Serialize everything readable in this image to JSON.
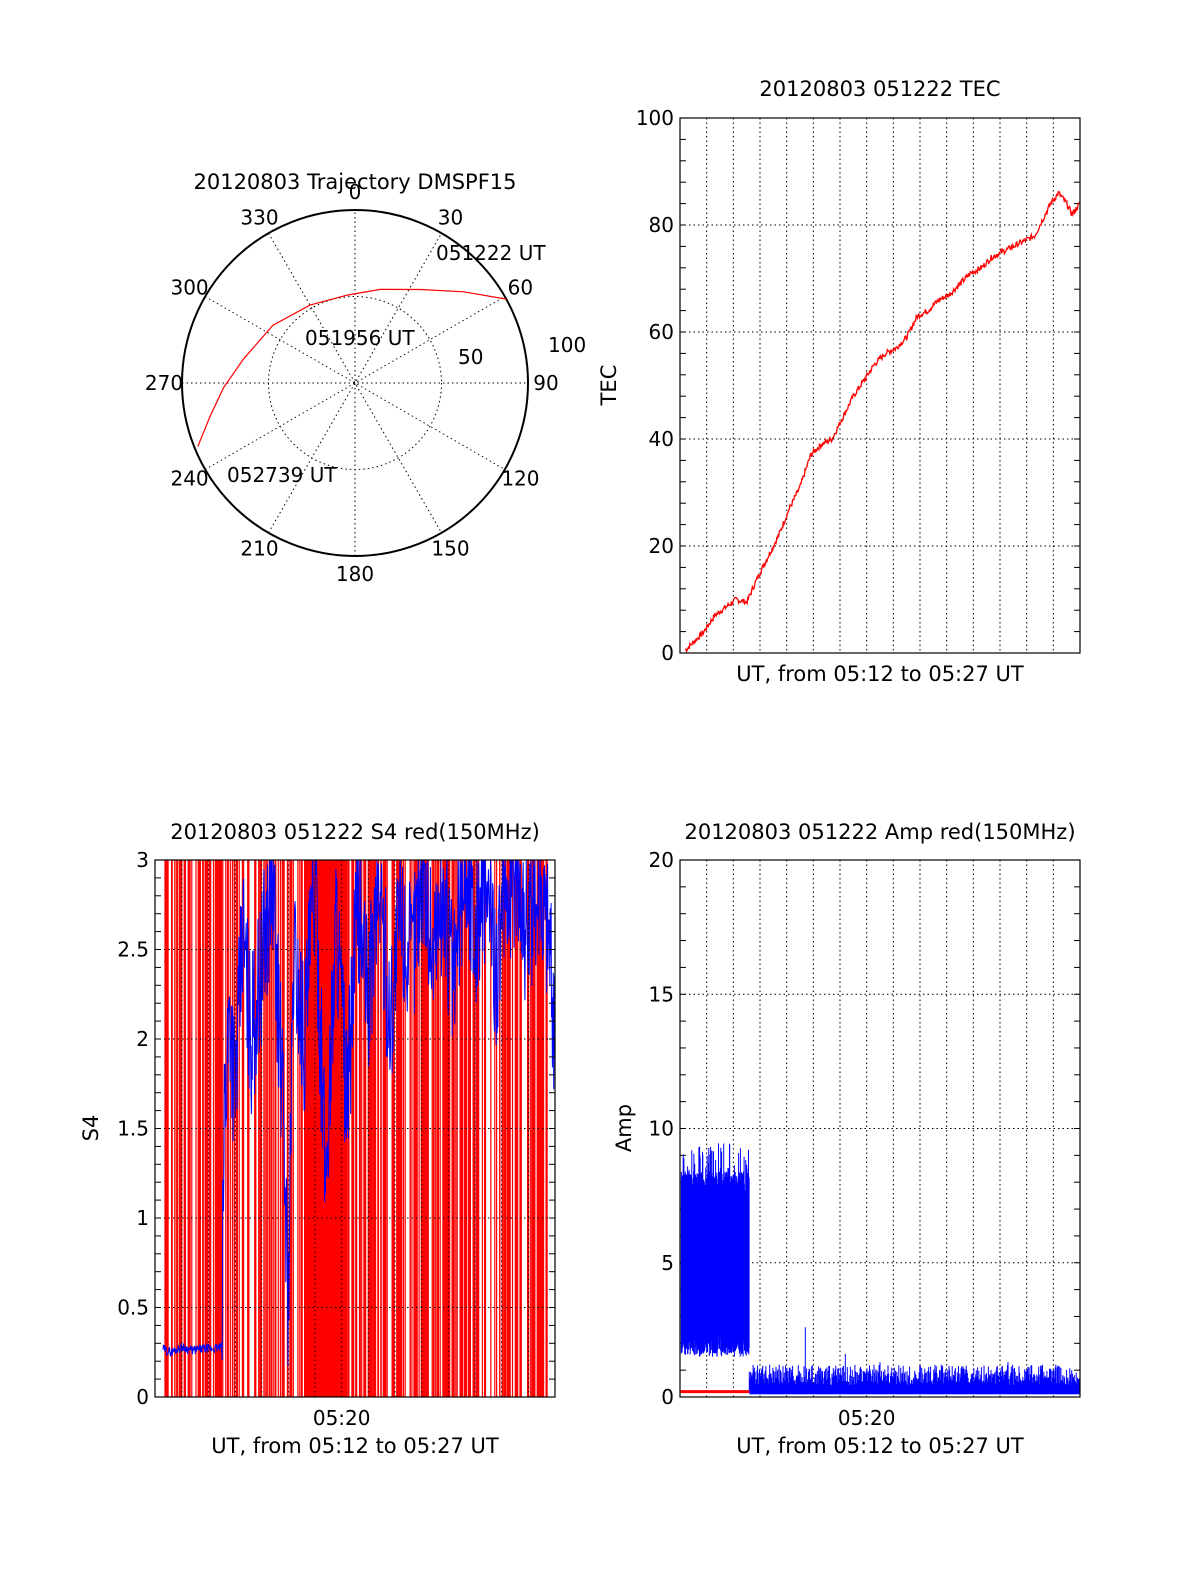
{
  "colors": {
    "red_series": "#ff0000",
    "blue_series": "#0000ff",
    "axes": "#000000"
  },
  "chart_data": [
    {
      "type": "polar",
      "title": "20120803 Trajectory DMSPF15",
      "angle_ticks": [
        "0",
        "30",
        "60",
        "90",
        "120",
        "150",
        "180",
        "210",
        "240",
        "270",
        "300",
        "330"
      ],
      "radial_ticks": [
        "50",
        "100"
      ],
      "zenith_range": [
        0,
        100
      ],
      "track": {
        "color": "#ff0000",
        "points": [
          {
            "azimuth": 61,
            "zenith": 100
          },
          {
            "azimuth": 50,
            "zenith": 82
          },
          {
            "azimuth": 35,
            "zenith": 66
          },
          {
            "azimuth": 15,
            "zenith": 56
          },
          {
            "azimuth": 355,
            "zenith": 51
          },
          {
            "azimuth": 330,
            "zenith": 52
          },
          {
            "azimuth": 305,
            "zenith": 58
          },
          {
            "azimuth": 282,
            "zenith": 66
          },
          {
            "azimuth": 268,
            "zenith": 76
          },
          {
            "azimuth": 257,
            "zenith": 86
          },
          {
            "azimuth": 248,
            "zenith": 98
          }
        ]
      },
      "annotations": [
        "051222 UT",
        "051956 UT",
        "052739 UT"
      ]
    },
    {
      "type": "line",
      "title": "20120803 051222 TEC",
      "xlabel": "UT, from 05:12 to 05:27 UT",
      "ylabel": "TEC",
      "xlim": [
        0,
        15
      ],
      "ylim": [
        0,
        100
      ],
      "yticks": [
        "0",
        "20",
        "40",
        "60",
        "80",
        "100"
      ],
      "grid": true,
      "series": [
        {
          "color": "#ff0000",
          "x": [
            0.2,
            0.5,
            0.9,
            1.3,
            1.7,
            2.1,
            2.5,
            2.9,
            3.3,
            3.7,
            4.1,
            4.5,
            4.9,
            5.3,
            5.7,
            6.1,
            6.5,
            6.9,
            7.3,
            7.7,
            8.1,
            8.5,
            8.9,
            9.3,
            9.7,
            10.1,
            10.5,
            10.9,
            11.3,
            11.7,
            12.1,
            12.5,
            12.9,
            13.3,
            13.6,
            13.9,
            14.2,
            14.5,
            14.7,
            15.0
          ],
          "y": [
            0.5,
            2,
            4,
            7,
            8.5,
            10,
            9.5,
            14,
            18,
            22,
            27,
            31,
            37,
            39,
            40,
            44,
            48,
            51,
            54,
            56,
            57,
            59,
            63,
            64,
            66,
            67,
            69,
            71,
            72,
            74,
            75,
            76,
            77,
            78,
            81,
            84,
            86,
            84,
            82,
            84
          ]
        }
      ]
    },
    {
      "type": "line",
      "title": "20120803 051222 S4 red(150MHz)",
      "xlabel": "UT, from 05:12 to 05:27 UT",
      "ylabel": "S4",
      "xlim": [
        0,
        15
      ],
      "ylim": [
        0,
        3
      ],
      "xticks": [
        {
          "value": 7,
          "label": "05:20"
        }
      ],
      "yticks": [
        "0",
        "0.5",
        "1",
        "1.5",
        "2",
        "2.5",
        "3"
      ],
      "grid": true,
      "series": [
        {
          "color": "#0000ff",
          "x": [
            0.3,
            0.6,
            1.0,
            1.4,
            1.8,
            2.2,
            2.5,
            2.6,
            2.8,
            3.0,
            3.3,
            3.6,
            4.0,
            4.4,
            4.8,
            5.0,
            5.2,
            5.6,
            6.0,
            6.4,
            6.8,
            7.2,
            7.6,
            8.0,
            8.4,
            8.8,
            9.2,
            9.6,
            10.0,
            10.4,
            10.8,
            11.2,
            11.6,
            12.0,
            12.4,
            12.8,
            13.2,
            13.6,
            14.0,
            14.4,
            14.8,
            15.0
          ],
          "y": [
            0.27,
            0.25,
            0.28,
            0.26,
            0.27,
            0.27,
            0.28,
            1.6,
            2.2,
            1.7,
            2.6,
            2.0,
            2.4,
            2.9,
            1.6,
            0.55,
            2.5,
            2.0,
            2.9,
            1.2,
            2.7,
            1.6,
            2.8,
            2.2,
            2.9,
            2.1,
            2.7,
            2.4,
            3.0,
            2.5,
            2.8,
            2.3,
            3.0,
            2.6,
            2.9,
            2.4,
            2.8,
            3.0,
            2.5,
            2.9,
            2.6,
            1.9
          ]
        },
        {
          "color": "#ff0000",
          "type": "dense-spikes",
          "range": [
            0,
            3
          ]
        }
      ]
    },
    {
      "type": "line",
      "title": "20120803 051222 Amp red(150MHz)",
      "xlabel": "UT, from 05:12 to 05:27 UT",
      "ylabel": "Amp",
      "xlim": [
        0,
        15
      ],
      "ylim": [
        0,
        20
      ],
      "xticks": [
        {
          "value": 7,
          "label": "05:20"
        }
      ],
      "yticks": [
        "0",
        "5",
        "10",
        "15",
        "20"
      ],
      "grid": true,
      "series": [
        {
          "color": "#0000ff",
          "segments": [
            {
              "x": [
                0.0,
                2.6
              ],
              "low": 1.5,
              "high": 9.0,
              "band_low": 2.3,
              "band_high": 7.5
            },
            {
              "x": [
                2.6,
                15.0
              ],
              "low": 0.1,
              "high": 1.2
            }
          ],
          "spikes": [
            {
              "x": 4.7,
              "y": 2.6
            },
            {
              "x": 6.2,
              "y": 1.6
            },
            {
              "x": 7.5,
              "y": 1.3
            },
            {
              "x": 9.8,
              "y": 1.2
            },
            {
              "x": 12.3,
              "y": 1.3
            }
          ]
        },
        {
          "color": "#ff0000",
          "x": [
            0.0,
            2.6
          ],
          "y": [
            0.2,
            0.2
          ]
        }
      ]
    }
  ]
}
